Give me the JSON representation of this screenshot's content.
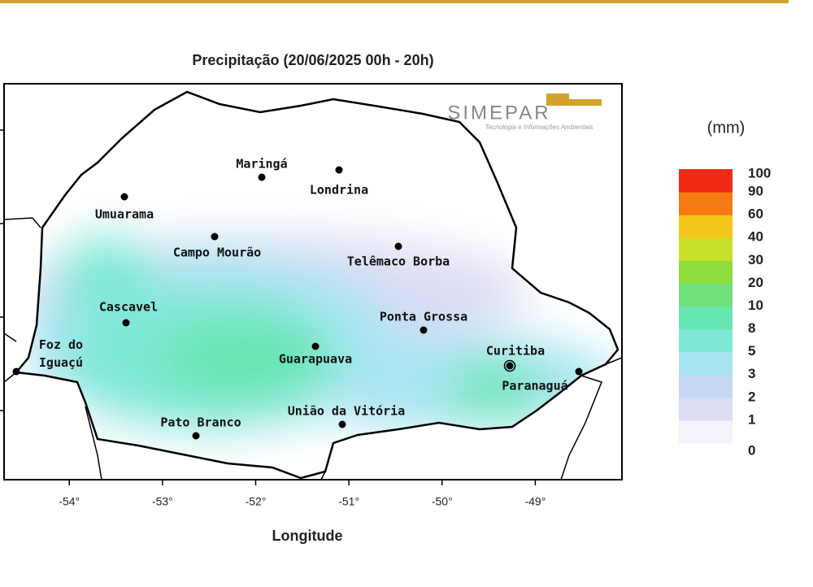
{
  "title": "Precipitação (20/06/2025 00h - 20h)",
  "logo": {
    "name": "SIMEPAR",
    "tagline": "Tecnologia e Informações Ambientais"
  },
  "map": {
    "xlabel": "Longitude",
    "xlim": [
      -54.7,
      -48.07
    ],
    "xticks": [
      {
        "value": -54,
        "label": "-54°"
      },
      {
        "value": -53,
        "label": "-53°"
      },
      {
        "value": -52,
        "label": "-52°"
      },
      {
        "value": -51,
        "label": "-51°"
      },
      {
        "value": -50,
        "label": "-50°"
      },
      {
        "value": -49,
        "label": "-49°"
      }
    ],
    "cities": [
      "Maringá",
      "Londrina",
      "Umuarama",
      "Campo Mourão",
      "Telêmaco Borba",
      "Cascavel",
      "Ponta Grossa",
      "Foz do Iguaçú",
      "Guarapuava",
      "Curitiba",
      "Paranaguá",
      "Pato Branco",
      "União da Vitória"
    ]
  },
  "legend": {
    "unit": "(mm)",
    "ticks": [
      0,
      1,
      2,
      3,
      5,
      8,
      10,
      20,
      30,
      40,
      60,
      90,
      100
    ],
    "colors": [
      "#f4f3fb",
      "#dcdcf4",
      "#c4d8f2",
      "#a8e4f0",
      "#7fe8d6",
      "#66e6b0",
      "#6fe07a",
      "#8fdc3c",
      "#c8e02a",
      "#f5c61a",
      "#f57a14",
      "#f02a14"
    ]
  }
}
